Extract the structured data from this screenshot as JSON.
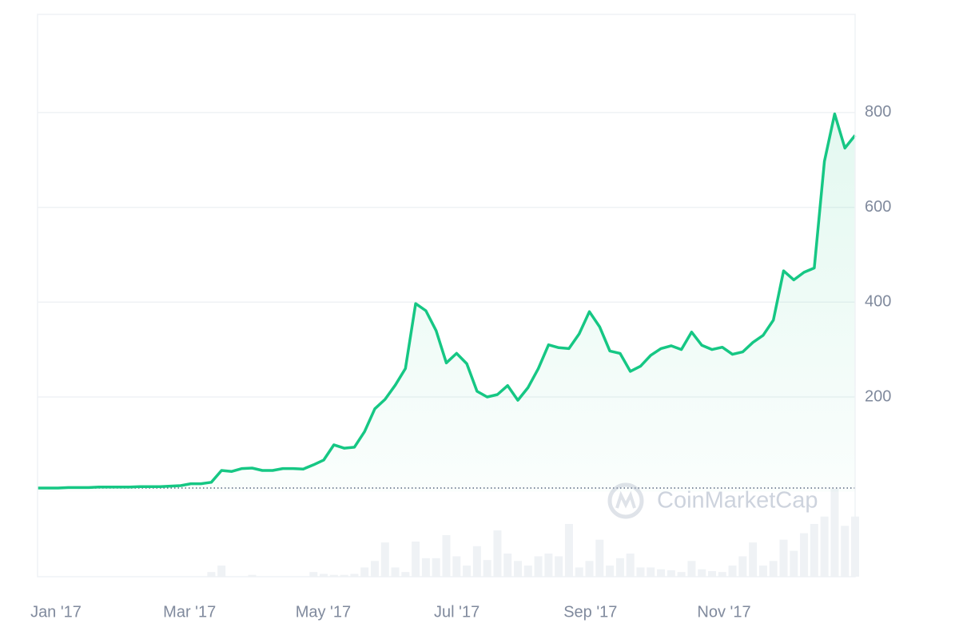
{
  "chart_data": {
    "type": "line",
    "x_labels": [
      "Jan '17",
      "Mar '17",
      "May '17",
      "Jul '17",
      "Sep '17",
      "Nov '17"
    ],
    "series": [
      {
        "name": "Price",
        "color": "#16c784",
        "values": [
          8,
          8,
          8,
          9,
          9,
          9,
          10,
          10,
          10,
          10,
          11,
          11,
          11,
          12,
          13,
          17,
          17,
          20,
          45,
          43,
          49,
          50,
          45,
          45,
          49,
          49,
          48,
          57,
          67,
          99,
          92,
          94,
          127,
          175,
          195,
          225,
          260,
          397,
          382,
          340,
          272,
          292,
          270,
          212,
          200,
          205,
          224,
          193,
          220,
          260,
          310,
          304,
          302,
          333,
          380,
          348,
          297,
          292,
          254,
          265,
          288,
          302,
          308,
          300,
          337,
          309,
          300,
          305,
          290,
          295,
          315,
          330,
          362,
          466,
          447,
          463,
          472,
          697,
          797,
          725,
          752
        ]
      },
      {
        "name": "Volume",
        "color": "#eff2f5",
        "values": [
          0,
          0,
          0,
          0,
          0,
          0,
          0,
          0,
          0,
          0,
          0,
          0,
          0,
          0,
          0,
          0,
          0,
          5,
          12,
          0,
          0,
          2,
          0,
          0,
          0,
          0,
          0,
          5,
          3,
          2,
          2,
          3,
          10,
          17,
          37,
          10,
          5,
          38,
          20,
          20,
          45,
          22,
          12,
          33,
          18,
          50,
          25,
          17,
          12,
          22,
          25,
          22,
          57,
          10,
          17,
          40,
          12,
          20,
          25,
          10,
          10,
          8,
          7,
          5,
          17,
          8,
          6,
          5,
          12,
          22,
          37,
          12,
          17,
          40,
          28,
          47,
          57,
          65,
          95,
          55,
          65
        ]
      }
    ],
    "ylim": [
      0,
      1007
    ],
    "yticks": [
      200,
      400,
      600,
      800
    ],
    "grid": true,
    "watermark": "CoinMarketCap"
  }
}
